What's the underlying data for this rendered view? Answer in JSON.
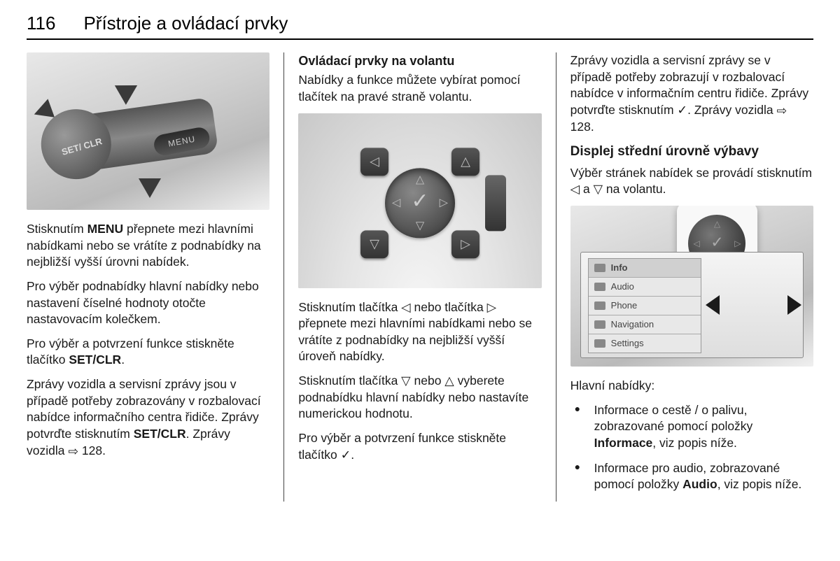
{
  "header": {
    "page_number": "116",
    "section_title": "Přístroje a ovládací prvky"
  },
  "col1": {
    "fig": {
      "knob_label": "SET/\nCLR",
      "menu_button": "MENU"
    },
    "p1_a": "Stisknutím ",
    "p1_menu": "MENU",
    "p1_b": " přepnete mezi hlavními nabídkami nebo se vrátíte z podnabídky na nejbližší vyšší úrovni nabídek.",
    "p2": "Pro výběr podnabídky hlavní nabídky nebo nastavení číselné hodnoty otočte nastavovacím kolečkem.",
    "p3_a": "Pro výběr a potvrzení funkce stiskněte tlačítko ",
    "p3_setclr": "SET/CLR",
    "p3_b": ".",
    "p4_a": "Zprávy vozidla a servisní zprávy jsou v případě potřeby zobrazovány v rozbalovací nabídce informačního centra řidiče. Zprávy potvrďte stisknutím ",
    "p4_setclr": "SET/CLR",
    "p4_b": ". Zprávy vozidla ",
    "p4_xref_arrow": "⇨",
    "p4_xref_num": " 128."
  },
  "col2": {
    "heading": "Ovládací prvky na volantu",
    "intro": "Nabídky a funkce můžete vybírat pomocí tlačítek na pravé straně volantu.",
    "p1": "Stisknutím tlačítka ◁ nebo tlačítka ▷ přepnete mezi hlavními nabídkami nebo se vrátíte z podnabídky na nejbližší vyšší úroveň nabídky.",
    "p2": "Stisknutím tlačítka ▽ nebo △ vyberete podnabídku hlavní nabídky nebo nastavíte numerickou hodnotu.",
    "p3": "Pro výběr a potvrzení funkce stiskněte tlačítko ✓."
  },
  "col3": {
    "p1_a": "Zprávy vozidla a servisní zprávy se v případě potřeby zobrazují v rozbalovací nabídce v informačním centru řidiče. Zprávy potvrďte stisknutím ✓. Zprávy vozidla ",
    "p1_xref_arrow": "⇨",
    "p1_xref_num": " 128.",
    "heading": "Displej střední úrovně výbavy",
    "p2": "Výběr stránek nabídek se provádí stisknutím ◁ a ▽ na volantu.",
    "menu_items": [
      "Info",
      "Audio",
      "Phone",
      "Navigation",
      "Settings"
    ],
    "list_heading": "Hlavní nabídky:",
    "bullets": [
      {
        "a": "Informace o cestě / o palivu, zobrazované pomocí položky ",
        "b": "Informace",
        "c": ", viz popis níže."
      },
      {
        "a": "Informace pro audio, zobrazované pomocí položky ",
        "b": "Audio",
        "c": ", viz popis níže."
      }
    ]
  }
}
